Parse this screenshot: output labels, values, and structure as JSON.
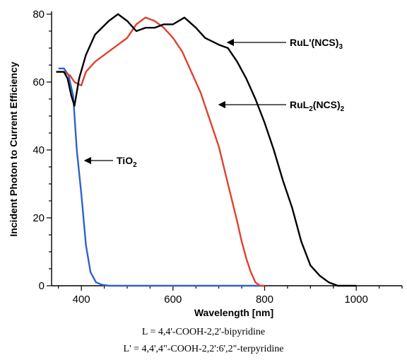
{
  "chart_data": {
    "type": "line",
    "xlabel": "Wavelength [nm]",
    "ylabel": "Incident Photon to Current Efficiency",
    "xlim": [
      335,
      1100
    ],
    "ylim": [
      0,
      80
    ],
    "x_ticks": [
      400,
      600,
      800,
      1000
    ],
    "y_ticks": [
      0,
      20,
      40,
      60,
      80
    ],
    "grid": false,
    "legend": "none",
    "series": [
      {
        "name": "TiO2",
        "color": "#2f62c8",
        "points": [
          [
            350,
            64
          ],
          [
            362,
            64
          ],
          [
            372,
            62
          ],
          [
            382,
            56
          ],
          [
            390,
            40
          ],
          [
            400,
            27
          ],
          [
            410,
            12
          ],
          [
            420,
            4
          ],
          [
            432,
            1
          ],
          [
            445,
            0.3
          ],
          [
            460,
            0
          ],
          [
            800,
            0
          ]
        ]
      },
      {
        "name": "RuL2(NCS)2",
        "color": "#e0402f",
        "points": [
          [
            345,
            63
          ],
          [
            360,
            63
          ],
          [
            375,
            62
          ],
          [
            385,
            60
          ],
          [
            400,
            59
          ],
          [
            410,
            63
          ],
          [
            430,
            66
          ],
          [
            460,
            69
          ],
          [
            480,
            71
          ],
          [
            500,
            73
          ],
          [
            520,
            77
          ],
          [
            540,
            79
          ],
          [
            560,
            78
          ],
          [
            580,
            76
          ],
          [
            600,
            73
          ],
          [
            620,
            69
          ],
          [
            640,
            63
          ],
          [
            660,
            57
          ],
          [
            680,
            49
          ],
          [
            700,
            41
          ],
          [
            720,
            30
          ],
          [
            740,
            19
          ],
          [
            750,
            13
          ],
          [
            760,
            8
          ],
          [
            770,
            4
          ],
          [
            780,
            1
          ],
          [
            790,
            0
          ],
          [
            800,
            0
          ]
        ]
      },
      {
        "name": "RuL'(NCS)3",
        "color": "#000000",
        "points": [
          [
            345,
            63
          ],
          [
            362,
            63
          ],
          [
            370,
            61
          ],
          [
            378,
            56
          ],
          [
            385,
            53
          ],
          [
            395,
            61
          ],
          [
            410,
            68
          ],
          [
            430,
            74
          ],
          [
            460,
            78
          ],
          [
            480,
            80
          ],
          [
            500,
            78
          ],
          [
            520,
            75
          ],
          [
            540,
            76
          ],
          [
            560,
            76
          ],
          [
            580,
            77
          ],
          [
            600,
            77
          ],
          [
            625,
            79
          ],
          [
            650,
            76
          ],
          [
            670,
            73
          ],
          [
            700,
            71
          ],
          [
            720,
            70
          ],
          [
            740,
            66
          ],
          [
            760,
            61
          ],
          [
            780,
            55
          ],
          [
            800,
            48
          ],
          [
            820,
            40
          ],
          [
            840,
            31
          ],
          [
            860,
            23
          ],
          [
            880,
            13
          ],
          [
            900,
            6
          ],
          [
            920,
            3
          ],
          [
            940,
            1
          ],
          [
            960,
            0
          ],
          [
            1000,
            0
          ]
        ]
      }
    ],
    "annotations": [
      {
        "base": "RuL'(NCS)",
        "sub": "3",
        "at": [
          700,
          71
        ]
      },
      {
        "base": "RuL",
        "sub1": "2",
        "mid": "(NCS)",
        "sub2": "2",
        "at": [
          700,
          53
        ]
      },
      {
        "base": "TiO",
        "sub": "2",
        "at": [
          400,
          37
        ]
      }
    ]
  },
  "footnotes": {
    "line1": "L = 4,4'-COOH-2,2'-bipyridine",
    "line2": "L' = 4,4',4\"-COOH-2,2':6',2\"-terpyridine"
  }
}
